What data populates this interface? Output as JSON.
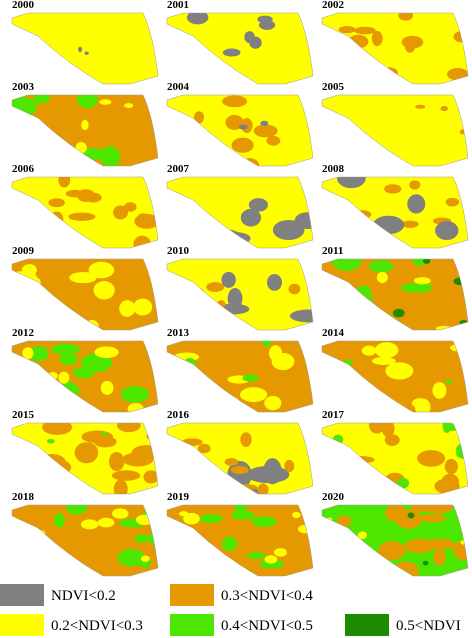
{
  "panels": [
    {
      "year": "2000"
    },
    {
      "year": "2001"
    },
    {
      "year": "2002"
    },
    {
      "year": "2003"
    },
    {
      "year": "2004"
    },
    {
      "year": "2005"
    },
    {
      "year": "2006"
    },
    {
      "year": "2007"
    },
    {
      "year": "2008"
    },
    {
      "year": "2009"
    },
    {
      "year": "2010"
    },
    {
      "year": "2011"
    },
    {
      "year": "2012"
    },
    {
      "year": "2013"
    },
    {
      "year": "2014"
    },
    {
      "year": "2015"
    },
    {
      "year": "2016"
    },
    {
      "year": "2017"
    },
    {
      "year": "2018"
    },
    {
      "year": "2019"
    },
    {
      "year": "2020"
    }
  ],
  "legend": [
    {
      "label": "NDVI<0.2",
      "color": "#808080"
    },
    {
      "label": "0.2<NDVI<0.3",
      "color": "#ffff00"
    },
    {
      "label": "0.3<NDVI<0.4",
      "color": "#e69800"
    },
    {
      "label": "0.4<NDVI<0.5",
      "color": "#4ce600"
    },
    {
      "label": "0.5<NDVI",
      "color": "#1e8c00"
    }
  ]
}
